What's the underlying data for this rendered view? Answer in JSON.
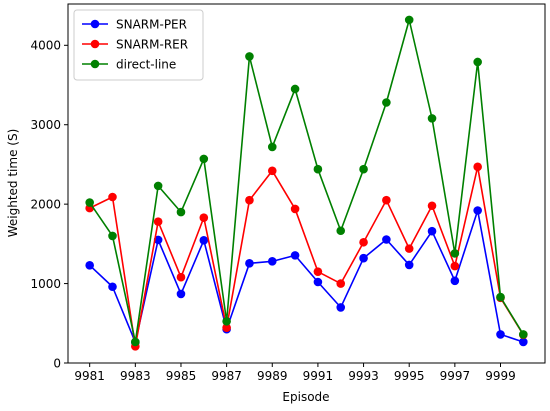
{
  "chart_data": {
    "type": "line",
    "title": "",
    "xlabel": "Episode",
    "ylabel": "Weighted time (S)",
    "x": [
      9981,
      9982,
      9983,
      9984,
      9985,
      9986,
      9987,
      9988,
      9989,
      9990,
      9991,
      9992,
      9993,
      9994,
      9995,
      9996,
      9997,
      9998,
      9999,
      10000
    ],
    "xticks": [
      9981,
      9983,
      9985,
      9987,
      9989,
      9991,
      9993,
      9995,
      9997,
      9999
    ],
    "yticks": [
      0,
      1000,
      2000,
      3000,
      4000
    ],
    "xlim": [
      9980.05,
      10000.95
    ],
    "ylim": [
      0,
      4520
    ],
    "grid": false,
    "legend_position": "top-left",
    "series": [
      {
        "name": "SNARM-PER",
        "color": "#0000ff",
        "values": [
          1230,
          960,
          260,
          1550,
          870,
          1545,
          425,
          1255,
          1280,
          1355,
          1020,
          700,
          1320,
          1555,
          1235,
          1660,
          1035,
          1920,
          360,
          265
        ]
      },
      {
        "name": "SNARM-RER",
        "color": "#ff0000",
        "values": [
          1950,
          2090,
          210,
          1780,
          1080,
          1830,
          445,
          2050,
          2420,
          1940,
          1150,
          1000,
          1520,
          2050,
          1440,
          1980,
          1220,
          2470,
          820,
          355
        ]
      },
      {
        "name": "direct-line",
        "color": "#008000",
        "values": [
          2020,
          1600,
          265,
          2230,
          1900,
          2570,
          525,
          3860,
          2720,
          3450,
          2440,
          1665,
          2440,
          3280,
          4320,
          3080,
          1380,
          3790,
          830,
          360
        ]
      }
    ]
  }
}
